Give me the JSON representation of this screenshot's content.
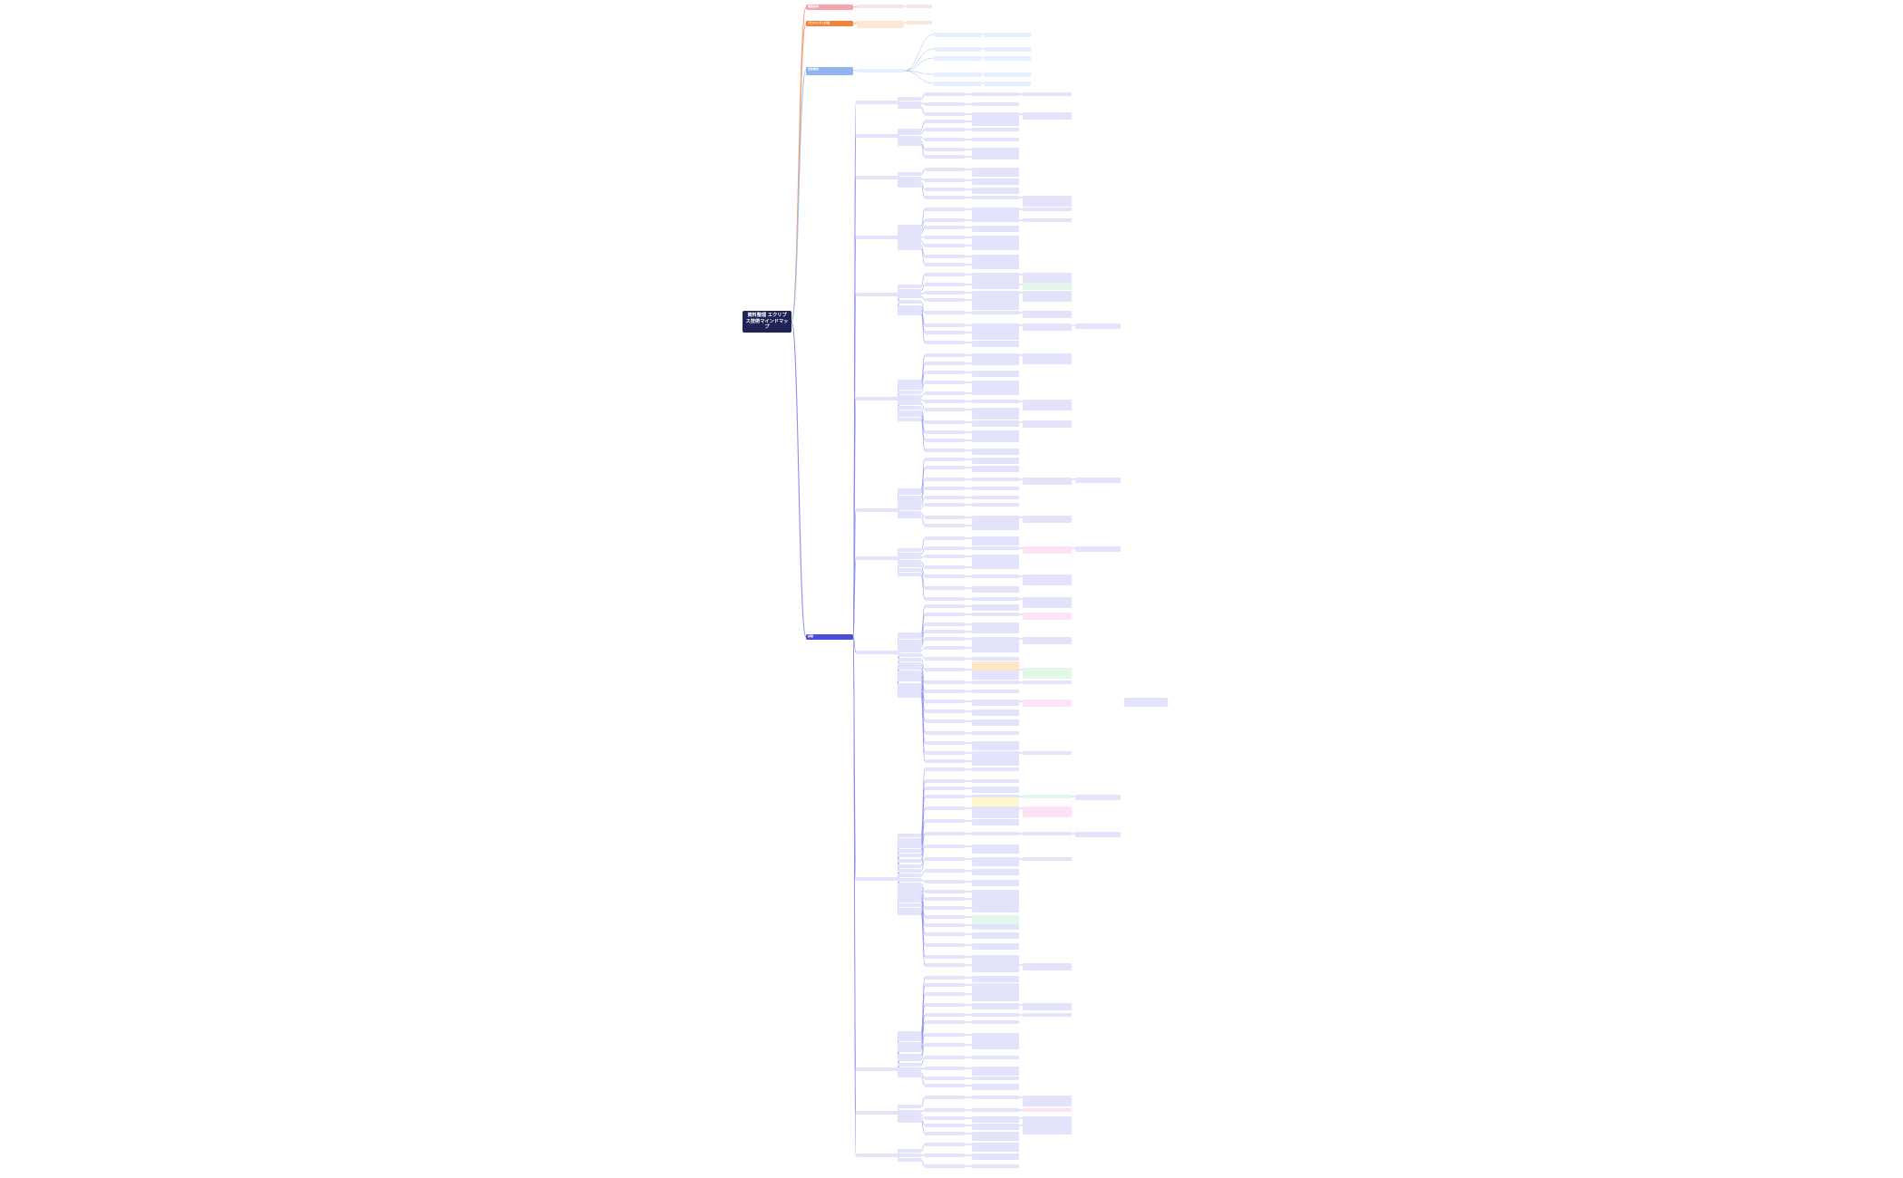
{
  "root": {
    "title": "資料整理\nエクリプス技術マインドマップ"
  },
  "categories": [
    {
      "label": "概要説明",
      "color": "#f7a3ad"
    },
    {
      "label": "プロジェクト計画",
      "color": "#f58236"
    },
    {
      "label": "全体構成",
      "color": "#8fb4ef"
    },
    {
      "label": "詳細",
      "color": "#4a4ed2"
    }
  ],
  "colors": {
    "link": "#8b8ef0",
    "link_red": "#f39a9a",
    "link_orange": "#f5a463",
    "link_blue": "#9fc0ee"
  }
}
